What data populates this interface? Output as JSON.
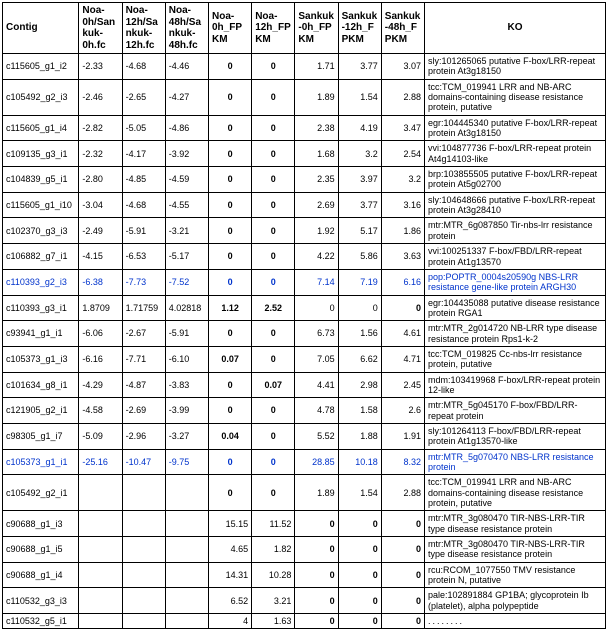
{
  "header_fontsize": 10,
  "body_fontsize": 9,
  "default_color": "#000000",
  "highlight_color": "#0033cc",
  "columns": [
    {
      "label": "Contig",
      "class": "c-contig",
      "header_align": "left"
    },
    {
      "label": "Noa-0h/Sankuk-0h.fc",
      "class": "c-fc",
      "header_align": "left"
    },
    {
      "label": "Noa-12h/Sankuk-12h.fc",
      "class": "c-fc",
      "header_align": "left"
    },
    {
      "label": "Noa-48h/Sankuk-48h.fc",
      "class": "c-fc",
      "header_align": "left"
    },
    {
      "label": "Noa-0h_FPKM",
      "class": "c-fpkm",
      "header_align": "left"
    },
    {
      "label": "Noa-12h_FPKM",
      "class": "c-fpkm",
      "header_align": "left"
    },
    {
      "label": "Sankuk-0h_FPKM",
      "class": "c-fpkm",
      "header_align": "left"
    },
    {
      "label": "Sankuk-12h_FPKM",
      "class": "c-fpkm",
      "header_align": "left"
    },
    {
      "label": "Sankuk-48h_FPKM",
      "class": "c-fpkm",
      "header_align": "left"
    },
    {
      "label": "KO",
      "class": "c-ko",
      "header_align": "center"
    }
  ],
  "rows": [
    {
      "contig": {
        "text": "c115605_g1_i2"
      },
      "cells": [
        {
          "text": "-2.33"
        },
        {
          "text": "-4.68"
        },
        {
          "text": "-4.46"
        },
        {
          "text": "0",
          "bold": true,
          "align": "center"
        },
        {
          "text": "0",
          "bold": true,
          "align": "center"
        },
        {
          "text": "1.71",
          "align": "right"
        },
        {
          "text": "3.77",
          "align": "right"
        },
        {
          "text": "3.07",
          "align": "right"
        }
      ],
      "ko": {
        "text": "sly:101265065   putative F-box/LRR-repeat protein At3g18150"
      }
    },
    {
      "contig": {
        "text": "c105492_g2_i3"
      },
      "cells": [
        {
          "text": "-2.46"
        },
        {
          "text": "-2.65"
        },
        {
          "text": "-4.27"
        },
        {
          "text": "0",
          "bold": true,
          "align": "center"
        },
        {
          "text": "0",
          "bold": true,
          "align": "center"
        },
        {
          "text": "1.89",
          "align": "right"
        },
        {
          "text": "1.54",
          "align": "right"
        },
        {
          "text": "2.88",
          "align": "right"
        }
      ],
      "ko": {
        "text": "tcc:TCM_019941  LRR and NB-ARC domains-containing disease resistance protein, putative"
      }
    },
    {
      "contig": {
        "text": "c115605_g1_i4"
      },
      "cells": [
        {
          "text": "-2.82"
        },
        {
          "text": "-5.05"
        },
        {
          "text": "-4.86"
        },
        {
          "text": "0",
          "bold": true,
          "align": "center"
        },
        {
          "text": "0",
          "bold": true,
          "align": "center"
        },
        {
          "text": "2.38",
          "align": "right"
        },
        {
          "text": "4.19",
          "align": "right"
        },
        {
          "text": "3.47",
          "align": "right"
        }
      ],
      "ko": {
        "text": "egr:104445340  putative F-box/LRR-repeat protein At3g18150"
      }
    },
    {
      "contig": {
        "text": "c109135_g3_i1"
      },
      "cells": [
        {
          "text": "-2.32"
        },
        {
          "text": "-4.17"
        },
        {
          "text": "-3.92"
        },
        {
          "text": "0",
          "bold": true,
          "align": "center"
        },
        {
          "text": "0",
          "bold": true,
          "align": "center"
        },
        {
          "text": "1.68",
          "align": "right"
        },
        {
          "text": "3.2",
          "align": "right"
        },
        {
          "text": "2.54",
          "align": "right"
        }
      ],
      "ko": {
        "text": "vvi:104877736  F-box/LRR-repeat protein At4g14103-like"
      }
    },
    {
      "contig": {
        "text": "c104839_g5_i1"
      },
      "cells": [
        {
          "text": "-2.80"
        },
        {
          "text": "-4.85"
        },
        {
          "text": "-4.59"
        },
        {
          "text": "0",
          "bold": true,
          "align": "center"
        },
        {
          "text": "0",
          "bold": true,
          "align": "center"
        },
        {
          "text": "2.35",
          "align": "right"
        },
        {
          "text": "3.97",
          "align": "right"
        },
        {
          "text": "3.2",
          "align": "right"
        }
      ],
      "ko": {
        "text": "brp:103855505  putative F-box/LRR-repeat protein At5g02700"
      }
    },
    {
      "contig": {
        "text": "c115605_g1_i10"
      },
      "cells": [
        {
          "text": "-3.04"
        },
        {
          "text": "-4.68"
        },
        {
          "text": "-4.55"
        },
        {
          "text": "0",
          "bold": true,
          "align": "center"
        },
        {
          "text": "0",
          "bold": true,
          "align": "center"
        },
        {
          "text": "2.69",
          "align": "right"
        },
        {
          "text": "3.77",
          "align": "right"
        },
        {
          "text": "3.16",
          "align": "right"
        }
      ],
      "ko": {
        "text": "sly:104648666   putative F-box/LRR-repeat protein At3g28410"
      }
    },
    {
      "contig": {
        "text": "c102370_g3_i3"
      },
      "cells": [
        {
          "text": "-2.49"
        },
        {
          "text": "-5.91"
        },
        {
          "text": "-3.21"
        },
        {
          "text": "0",
          "bold": true,
          "align": "center"
        },
        {
          "text": "0",
          "bold": true,
          "align": "center"
        },
        {
          "text": "1.92",
          "align": "right"
        },
        {
          "text": "5.17",
          "align": "right"
        },
        {
          "text": "1.86",
          "align": "right"
        }
      ],
      "ko": {
        "text": "mtr:MTR_6g087850  Tir-nbs-lrr resistance protein"
      }
    },
    {
      "contig": {
        "text": "c106882_g7_i1"
      },
      "cells": [
        {
          "text": "-4.15"
        },
        {
          "text": "-6.53"
        },
        {
          "text": "-5.17"
        },
        {
          "text": "0",
          "bold": true,
          "align": "center"
        },
        {
          "text": "0",
          "bold": true,
          "align": "center"
        },
        {
          "text": "4.22",
          "align": "right"
        },
        {
          "text": "5.86",
          "align": "right"
        },
        {
          "text": "3.63",
          "align": "right"
        }
      ],
      "ko": {
        "text": "vvi:100251337  F-box/FBD/LRR-repeat protein At1g13570"
      }
    },
    {
      "contig": {
        "text": "c110393_g2_i3",
        "color": "#0033cc"
      },
      "cells": [
        {
          "text": "-6.38",
          "color": "#0033cc"
        },
        {
          "text": "-7.73",
          "color": "#0033cc"
        },
        {
          "text": "-7.52",
          "color": "#0033cc"
        },
        {
          "text": "0",
          "bold": true,
          "align": "center",
          "color": "#0033cc"
        },
        {
          "text": "0",
          "bold": true,
          "align": "center",
          "color": "#0033cc"
        },
        {
          "text": "7.14",
          "align": "right",
          "color": "#0033cc"
        },
        {
          "text": "7.19",
          "align": "right",
          "color": "#0033cc"
        },
        {
          "text": "6.16",
          "align": "right",
          "color": "#0033cc"
        }
      ],
      "ko": {
        "text": "pop:POPTR_0004s20590g   NBS-LRR resistance gene-like protein ARGH30",
        "color": "#0033cc"
      }
    },
    {
      "contig": {
        "text": "c110393_g3_i1"
      },
      "cells": [
        {
          "text": "1.8709"
        },
        {
          "text": "1.71759"
        },
        {
          "text": "4.02818"
        },
        {
          "text": "1.12",
          "bold": true,
          "align": "center"
        },
        {
          "text": "2.52",
          "bold": true,
          "align": "center"
        },
        {
          "text": "0",
          "align": "right"
        },
        {
          "text": "0",
          "align": "right"
        },
        {
          "text": "0",
          "bold": true,
          "align": "right"
        }
      ],
      "ko": {
        "text": "egr:104435088   putative disease resistance protein RGA1"
      }
    },
    {
      "contig": {
        "text": "c93941_g1_i1"
      },
      "cells": [
        {
          "text": "-6.06"
        },
        {
          "text": "-2.67"
        },
        {
          "text": "-5.91"
        },
        {
          "text": "0",
          "bold": true,
          "align": "center"
        },
        {
          "text": "0",
          "bold": true,
          "align": "center"
        },
        {
          "text": "6.73",
          "align": "right"
        },
        {
          "text": "1.56",
          "align": "right"
        },
        {
          "text": "4.61",
          "align": "right"
        }
      ],
      "ko": {
        "text": "mtr:MTR_2g014720   NB-LRR type disease resistance protein Rps1-k-2"
      }
    },
    {
      "contig": {
        "text": "c105373_g1_i3"
      },
      "cells": [
        {
          "text": "-6.16"
        },
        {
          "text": "-7.71"
        },
        {
          "text": "-6.10"
        },
        {
          "text": "0.07",
          "bold": true,
          "align": "center"
        },
        {
          "text": "0",
          "bold": true,
          "align": "center"
        },
        {
          "text": "7.05",
          "align": "right"
        },
        {
          "text": "6.62",
          "align": "right"
        },
        {
          "text": "4.71",
          "align": "right"
        }
      ],
      "ko": {
        "text": "tcc:TCM_019825  Cc-nbs-lrr resistance protein, putative"
      }
    },
    {
      "contig": {
        "text": "c101634_g8_i1"
      },
      "cells": [
        {
          "text": "-4.29"
        },
        {
          "text": "-4.87"
        },
        {
          "text": "-3.83"
        },
        {
          "text": "0",
          "bold": true,
          "align": "center"
        },
        {
          "text": "0.07",
          "bold": true,
          "align": "center"
        },
        {
          "text": "4.41",
          "align": "right"
        },
        {
          "text": "2.98",
          "align": "right"
        },
        {
          "text": "2.45",
          "align": "right"
        }
      ],
      "ko": {
        "text": "mdm:103419968  F-box/LRR-repeat protein 12-like"
      }
    },
    {
      "contig": {
        "text": "c121905_g2_i1"
      },
      "cells": [
        {
          "text": "-4.58"
        },
        {
          "text": "-2.69"
        },
        {
          "text": "-3.99"
        },
        {
          "text": "0",
          "bold": true,
          "align": "center"
        },
        {
          "text": "0",
          "bold": true,
          "align": "center"
        },
        {
          "text": "4.78",
          "align": "right"
        },
        {
          "text": "1.58",
          "align": "right"
        },
        {
          "text": "2.6",
          "align": "right"
        }
      ],
      "ko": {
        "text": "mtr:MTR_5g045170  F-box/FBD/LRR-repeat protein"
      }
    },
    {
      "contig": {
        "text": "c98305_g1_i7"
      },
      "cells": [
        {
          "text": "-5.09"
        },
        {
          "text": "-2.96"
        },
        {
          "text": "-3.27"
        },
        {
          "text": "0.04",
          "bold": true,
          "align": "center"
        },
        {
          "text": "0",
          "bold": true,
          "align": "center"
        },
        {
          "text": "5.52",
          "align": "right"
        },
        {
          "text": "1.88",
          "align": "right"
        },
        {
          "text": "1.91",
          "align": "right"
        }
      ],
      "ko": {
        "text": "sly:101264113  F-box/FBD/LRR-repeat protein At1g13570-like"
      }
    },
    {
      "contig": {
        "text": "c105373_g1_i1",
        "color": "#0033cc"
      },
      "cells": [
        {
          "text": "-25.16",
          "color": "#0033cc"
        },
        {
          "text": "-10.47",
          "color": "#0033cc"
        },
        {
          "text": "-9.75",
          "color": "#0033cc"
        },
        {
          "text": "0",
          "bold": true,
          "align": "center",
          "color": "#0033cc"
        },
        {
          "text": "0",
          "bold": true,
          "align": "center",
          "color": "#0033cc"
        },
        {
          "text": "28.85",
          "align": "right",
          "color": "#0033cc"
        },
        {
          "text": "10.18",
          "align": "right",
          "color": "#0033cc"
        },
        {
          "text": "8.32",
          "align": "right",
          "color": "#0033cc"
        }
      ],
      "ko": {
        "text": "mtr:MTR_5g070470  NBS-LRR resistance protein",
        "color": "#0033cc"
      }
    },
    {
      "contig": {
        "text": "c105492_g2_i1"
      },
      "cells": [
        {
          "text": ""
        },
        {
          "text": ""
        },
        {
          "text": ""
        },
        {
          "text": "0",
          "bold": true,
          "align": "center"
        },
        {
          "text": "0",
          "bold": true,
          "align": "center"
        },
        {
          "text": "1.89",
          "align": "right"
        },
        {
          "text": "1.54",
          "align": "right"
        },
        {
          "text": "2.88",
          "align": "right"
        }
      ],
      "ko": {
        "text": "tcc:TCM_019941  LRR and NB-ARC domains-containing disease resistance protein, putative"
      }
    },
    {
      "contig": {
        "text": "c90688_g1_i3"
      },
      "cells": [
        {
          "text": ""
        },
        {
          "text": ""
        },
        {
          "text": ""
        },
        {
          "text": "15.15",
          "align": "right"
        },
        {
          "text": "11.52",
          "align": "right"
        },
        {
          "text": "0",
          "bold": true,
          "align": "right"
        },
        {
          "text": "0",
          "bold": true,
          "align": "right"
        },
        {
          "text": "0",
          "bold": true,
          "align": "right"
        }
      ],
      "ko": {
        "text": "mtr:MTR_3g080470  TIR-NBS-LRR-TIR type disease resistance protein"
      }
    },
    {
      "contig": {
        "text": "c90688_g1_i5"
      },
      "cells": [
        {
          "text": ""
        },
        {
          "text": ""
        },
        {
          "text": ""
        },
        {
          "text": "4.65",
          "align": "right"
        },
        {
          "text": "1.82",
          "align": "right"
        },
        {
          "text": "0",
          "bold": true,
          "align": "right"
        },
        {
          "text": "0",
          "bold": true,
          "align": "right"
        },
        {
          "text": "0",
          "bold": true,
          "align": "right"
        }
      ],
      "ko": {
        "text": "mtr:MTR_3g080470  TIR-NBS-LRR-TIR type disease resistance protein"
      }
    },
    {
      "contig": {
        "text": "c90688_g1_i4"
      },
      "cells": [
        {
          "text": ""
        },
        {
          "text": ""
        },
        {
          "text": ""
        },
        {
          "text": "14.31",
          "align": "right"
        },
        {
          "text": "10.28",
          "align": "right"
        },
        {
          "text": "0",
          "bold": true,
          "align": "right"
        },
        {
          "text": "0",
          "bold": true,
          "align": "right"
        },
        {
          "text": "0",
          "bold": true,
          "align": "right"
        }
      ],
      "ko": {
        "text": "rcu:RCOM_1077550  TMV resistance protein N, putative"
      }
    },
    {
      "contig": {
        "text": "c110532_g3_i3"
      },
      "cells": [
        {
          "text": ""
        },
        {
          "text": ""
        },
        {
          "text": ""
        },
        {
          "text": "6.52",
          "align": "right"
        },
        {
          "text": "3.21",
          "align": "right"
        },
        {
          "text": "0",
          "bold": true,
          "align": "right"
        },
        {
          "text": "0",
          "bold": true,
          "align": "right"
        },
        {
          "text": "0",
          "bold": true,
          "align": "right"
        }
      ],
      "ko": {
        "text": "pale:102891884  GP1BA; glycoprotein Ib (platelet), alpha polypeptide"
      }
    },
    {
      "contig": {
        "text": "c110532_g5_i1"
      },
      "cells": [
        {
          "text": ""
        },
        {
          "text": ""
        },
        {
          "text": ""
        },
        {
          "text": "4",
          "align": "right"
        },
        {
          "text": "1.63",
          "align": "right"
        },
        {
          "text": "0",
          "bold": true,
          "align": "right"
        },
        {
          "text": "0",
          "bold": true,
          "align": "right"
        },
        {
          "text": "0",
          "bold": true,
          "align": "right"
        }
      ],
      "ko": {
        "text": "........",
        "dots": true
      }
    }
  ]
}
